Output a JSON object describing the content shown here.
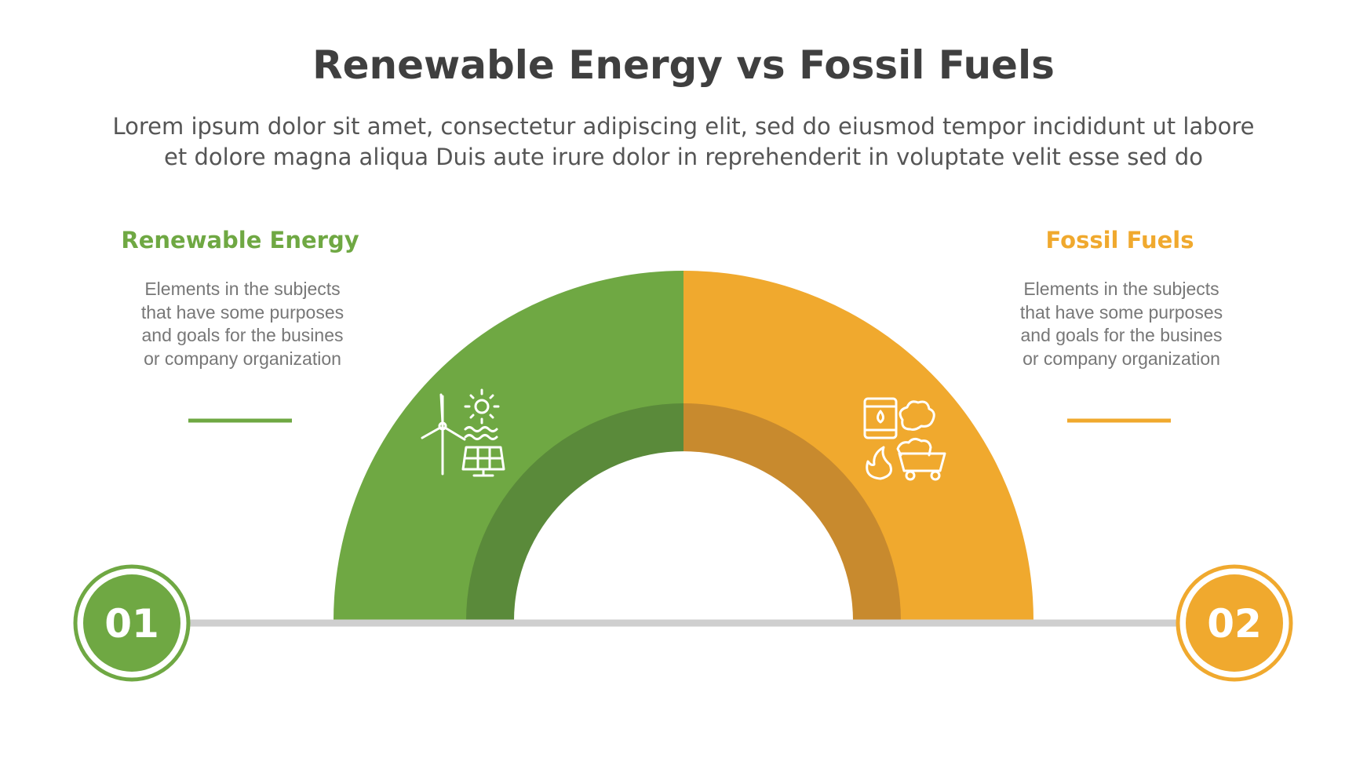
{
  "header": {
    "title": "Renewable Energy vs Fossil Fuels",
    "subtitle": [
      "Lorem ipsum dolor sit amet, consectetur adipiscing elit, sed do eiusmod tempor incididunt ut labore",
      "et dolore magna aliqua Duis aute irure dolor in reprehenderit in voluptate velit esse sed do"
    ]
  },
  "items": [
    {
      "number": "01",
      "heading": "Renewable Energy",
      "body": [
        "Elements in the subjects",
        "that have some purposes",
        "and goals for the  busines",
        "or company organization"
      ]
    },
    {
      "number": "02",
      "heading": "Fossil Fuels",
      "body": [
        "Elements in the subjects",
        "that have some purposes",
        "and goals for the  busines",
        "or company organization"
      ]
    }
  ]
}
